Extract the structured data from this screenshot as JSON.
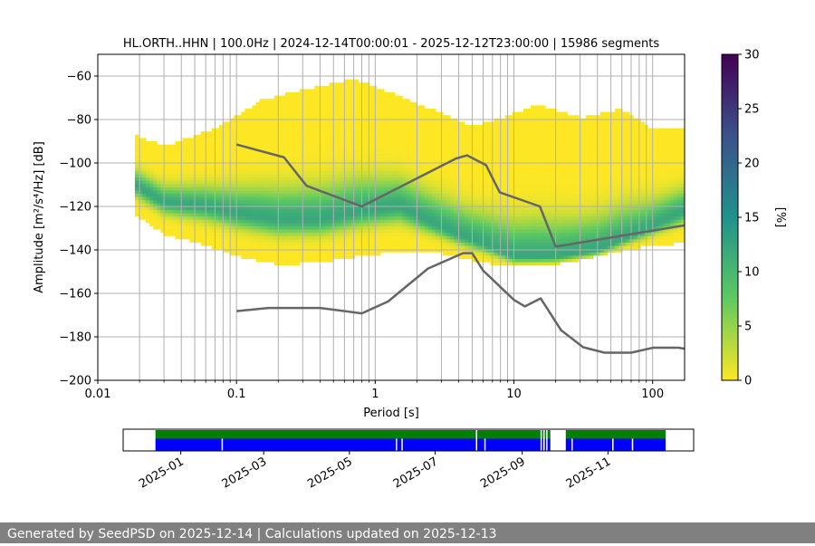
{
  "header": {
    "title": "HL.ORTH..HHN | 100.0Hz | 2024-12-14T00:00:01 - 2025-12-12T23:00:00 | 15986 segments"
  },
  "footer": {
    "text": "Generated by SeedPSD on 2025-12-14 | Calculations updated on 2025-12-13"
  },
  "chart_data": [
    {
      "type": "heatmap",
      "xlabel": "Period [s]",
      "ylabel": "Amplitude [m²/s⁴/Hz] [dB]",
      "x_scale": "log",
      "xlim": [
        0.01,
        170
      ],
      "ylim": [
        -200,
        -50
      ],
      "x_ticks": [
        {
          "value": 0.01,
          "label": "0.01"
        },
        {
          "value": 0.1,
          "label": "0.1"
        },
        {
          "value": 1,
          "label": "1"
        },
        {
          "value": 10,
          "label": "10"
        },
        {
          "value": 100,
          "label": "100"
        }
      ],
      "y_ticks": [
        {
          "value": -60,
          "label": "−60"
        },
        {
          "value": -80,
          "label": "−80"
        },
        {
          "value": -100,
          "label": "−100"
        },
        {
          "value": -120,
          "label": "−120"
        },
        {
          "value": -140,
          "label": "−140"
        },
        {
          "value": -160,
          "label": "−160"
        },
        {
          "value": -180,
          "label": "−180"
        },
        {
          "value": -200,
          "label": "−200"
        }
      ],
      "grid": true,
      "colorbar": {
        "label": "[%]",
        "min": 0,
        "max": 30,
        "ticks": [
          {
            "value": 0,
            "label": "0"
          },
          {
            "value": 5,
            "label": "5"
          },
          {
            "value": 10,
            "label": "10"
          },
          {
            "value": 15,
            "label": "15"
          },
          {
            "value": 20,
            "label": "20"
          },
          {
            "value": 25,
            "label": "25"
          },
          {
            "value": 30,
            "label": "30"
          }
        ],
        "colormap": [
          "#fde725",
          "#5ec962",
          "#21918c",
          "#3b528b",
          "#440154"
        ]
      },
      "density": {
        "period_range": [
          0.0185,
          170
        ],
        "upper_envelope": [
          [
            0.0185,
            -88
          ],
          [
            0.03,
            -93
          ],
          [
            0.07,
            -85
          ],
          [
            0.15,
            -72
          ],
          [
            0.3,
            -67
          ],
          [
            0.7,
            -62
          ],
          [
            1.5,
            -70
          ],
          [
            3,
            -78
          ],
          [
            5,
            -84
          ],
          [
            8,
            -80
          ],
          [
            15,
            -74
          ],
          [
            30,
            -80
          ],
          [
            60,
            -76
          ],
          [
            100,
            -85
          ],
          [
            170,
            -85
          ]
        ],
        "lower_envelope": [
          [
            0.0185,
            -123
          ],
          [
            0.03,
            -132
          ],
          [
            0.06,
            -137
          ],
          [
            0.1,
            -142
          ],
          [
            0.2,
            -146
          ],
          [
            0.4,
            -145
          ],
          [
            0.8,
            -142
          ],
          [
            1.5,
            -140
          ],
          [
            3,
            -141
          ],
          [
            6,
            -145
          ],
          [
            10,
            -147
          ],
          [
            20,
            -146
          ],
          [
            40,
            -142
          ],
          [
            80,
            -138
          ],
          [
            170,
            -136
          ]
        ],
        "mode_curve": [
          [
            0.0185,
            -110
          ],
          [
            0.03,
            -118
          ],
          [
            0.06,
            -120
          ],
          [
            0.1,
            -123
          ],
          [
            0.2,
            -126
          ],
          [
            0.4,
            -126
          ],
          [
            0.8,
            -122
          ],
          [
            1.5,
            -120
          ],
          [
            2.5,
            -127
          ],
          [
            4,
            -133
          ],
          [
            6,
            -137
          ],
          [
            10,
            -143
          ],
          [
            20,
            -143
          ],
          [
            40,
            -140
          ],
          [
            80,
            -132
          ],
          [
            170,
            -122
          ]
        ],
        "mode_max_percent": 12
      },
      "series": [
        {
          "color": "#666666",
          "points": [
            [
              0.1,
              -91.5
            ],
            [
              0.22,
              -97.4
            ],
            [
              0.32,
              -110.5
            ],
            [
              0.8,
              -120
            ],
            [
              3.8,
              -98
            ],
            [
              4.6,
              -96.5
            ],
            [
              6.3,
              -101
            ],
            [
              7.9,
              -113.5
            ],
            [
              15.4,
              -120
            ],
            [
              20,
              -138.5
            ],
            [
              170,
              -128.7
            ]
          ]
        },
        {
          "color": "#666666",
          "points": [
            [
              0.1,
              -168.2
            ],
            [
              0.17,
              -166.7
            ],
            [
              0.4,
              -166.7
            ],
            [
              0.8,
              -169.2
            ],
            [
              1.24,
              -163.7
            ],
            [
              2.4,
              -148.6
            ],
            [
              4.3,
              -141.5
            ],
            [
              5.0,
              -141.5
            ],
            [
              6.0,
              -149.5
            ],
            [
              10,
              -163
            ],
            [
              12,
              -166
            ],
            [
              15.6,
              -162.3
            ],
            [
              21.9,
              -177
            ],
            [
              31.6,
              -184.8
            ],
            [
              45,
              -187.3
            ],
            [
              70,
              -187.3
            ],
            [
              101,
              -185
            ],
            [
              154,
              -185
            ],
            [
              170,
              -185.5
            ]
          ]
        }
      ]
    },
    {
      "type": "timeline",
      "x_ticks": [
        {
          "value": "2025-01-01",
          "label": "2025-01"
        },
        {
          "value": "2025-03-01",
          "label": "2025-03"
        },
        {
          "value": "2025-05-01",
          "label": "2025-05"
        },
        {
          "value": "2025-07-01",
          "label": "2025-07"
        },
        {
          "value": "2025-09-01",
          "label": "2025-09"
        },
        {
          "value": "2025-11-01",
          "label": "2025-11"
        }
      ],
      "xlim": [
        "2024-11-21",
        "2026-01-01"
      ],
      "rows": [
        {
          "color": "#008000",
          "segments": [
            [
              "2024-12-14",
              "2025-07-30"
            ],
            [
              "2025-07-31",
              "2025-09-14"
            ],
            [
              "2025-09-15",
              "2025-09-16"
            ],
            [
              "2025-09-17",
              "2025-09-18"
            ],
            [
              "2025-09-19",
              "2025-09-21"
            ],
            [
              "2025-10-02",
              "2025-12-12"
            ]
          ]
        },
        {
          "color": "#0000ff",
          "segments": [
            [
              "2024-12-14",
              "2025-01-30"
            ],
            [
              "2025-01-31",
              "2025-06-03"
            ],
            [
              "2025-06-04",
              "2025-06-07"
            ],
            [
              "2025-06-08",
              "2025-07-30"
            ],
            [
              "2025-07-31",
              "2025-08-05"
            ],
            [
              "2025-08-06",
              "2025-09-14"
            ],
            [
              "2025-09-15",
              "2025-09-16"
            ],
            [
              "2025-09-17",
              "2025-09-18"
            ],
            [
              "2025-09-19",
              "2025-09-21"
            ],
            [
              "2025-10-02",
              "2025-10-06"
            ],
            [
              "2025-10-07",
              "2025-11-04"
            ],
            [
              "2025-11-05",
              "2025-11-18"
            ],
            [
              "2025-11-19",
              "2025-12-12"
            ]
          ]
        }
      ]
    }
  ]
}
